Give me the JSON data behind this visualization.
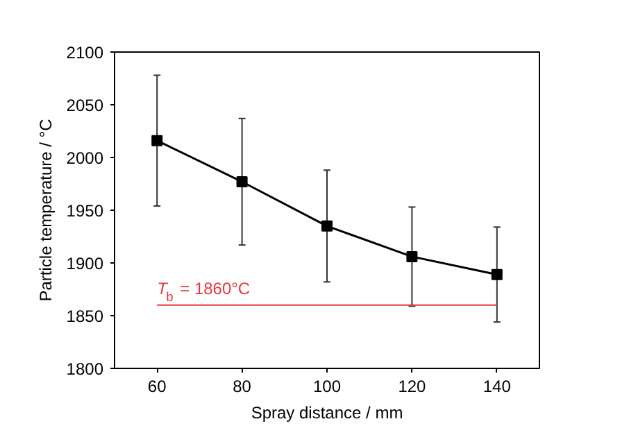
{
  "chart_data": {
    "type": "line",
    "xlabel": "Spray distance / mm",
    "ylabel": "Particle temperature / °C",
    "x": [
      60,
      80,
      100,
      120,
      140
    ],
    "series": [
      {
        "color": "#000000",
        "values": [
          2016,
          1977,
          1935,
          1906,
          1889
        ],
        "errors": [
          62,
          60,
          53,
          47,
          45
        ]
      }
    ],
    "marker": "square",
    "line_style": "solid",
    "xlim": [
      50,
      150
    ],
    "xticks": [
      60,
      80,
      100,
      120,
      140
    ],
    "ylim": [
      1800,
      2100
    ],
    "yticks": [
      1800,
      1850,
      1900,
      1950,
      2000,
      2050,
      2100
    ],
    "ref_lines": [
      {
        "axis": "y",
        "value": 1860,
        "label": "T$_{b}$ = 1860°C",
        "color": "#e8383d"
      }
    ],
    "grid": false
  }
}
